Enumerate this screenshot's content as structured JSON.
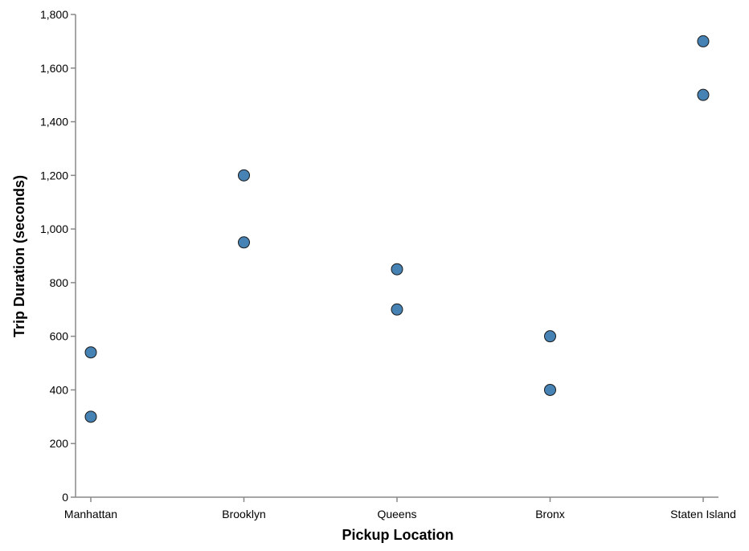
{
  "chart_data": {
    "type": "scatter",
    "title": "",
    "xlabel": "Pickup Location",
    "ylabel": "Trip Duration (seconds)",
    "categories": [
      "Manhattan",
      "Brooklyn",
      "Queens",
      "Bronx",
      "Staten Island"
    ],
    "ylim": [
      0,
      1800
    ],
    "yticks": [
      0,
      200,
      400,
      600,
      800,
      1000,
      1200,
      1400,
      1600,
      1800
    ],
    "ytick_labels": [
      "0",
      "200",
      "400",
      "600",
      "800",
      "1,000",
      "1,200",
      "1,400",
      "1,600",
      "1,800"
    ],
    "grid": false,
    "point_color": "#4682b4",
    "point_stroke": "#1a1a1a",
    "points": [
      {
        "x": "Manhattan",
        "y": 540
      },
      {
        "x": "Manhattan",
        "y": 300
      },
      {
        "x": "Brooklyn",
        "y": 1200
      },
      {
        "x": "Brooklyn",
        "y": 950
      },
      {
        "x": "Queens",
        "y": 850
      },
      {
        "x": "Queens",
        "y": 700
      },
      {
        "x": "Bronx",
        "y": 600
      },
      {
        "x": "Bronx",
        "y": 400
      },
      {
        "x": "Staten Island",
        "y": 1700
      },
      {
        "x": "Staten Island",
        "y": 1500
      }
    ]
  }
}
